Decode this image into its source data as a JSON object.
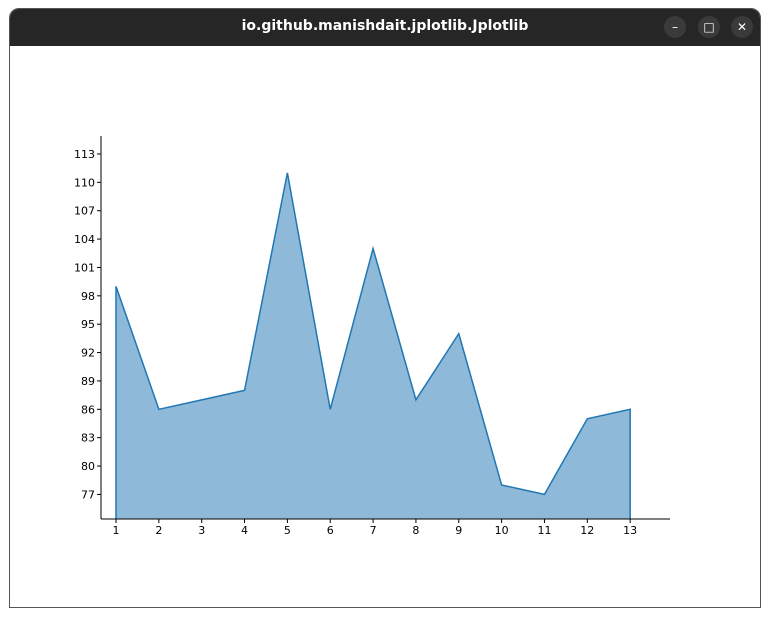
{
  "window": {
    "title": "io.github.manishdait.jplotlib.Jplotlib",
    "minimize_glyph": "–",
    "maximize_glyph": "□",
    "close_glyph": "✕"
  },
  "chart_data": {
    "type": "area",
    "title": "",
    "xlabel": "",
    "ylabel": "",
    "x": [
      1,
      2,
      3,
      4,
      5,
      6,
      7,
      8,
      9,
      10,
      11,
      12,
      13
    ],
    "series": [
      {
        "values": [
          99,
          86,
          87,
          88,
          111,
          86,
          103,
          87,
          94,
          78,
          77,
          85,
          86
        ]
      }
    ],
    "xticks": [
      1,
      2,
      3,
      4,
      5,
      6,
      7,
      8,
      9,
      10,
      11,
      12,
      13
    ],
    "yticks": [
      77,
      80,
      83,
      86,
      89,
      92,
      95,
      98,
      101,
      104,
      107,
      110,
      113
    ],
    "ylim": [
      74.4,
      114.9
    ],
    "xlim": [
      0.65,
      13.93
    ],
    "grid": false,
    "fill_color": "#8fb9d8",
    "line_color": "#1f77b4"
  }
}
